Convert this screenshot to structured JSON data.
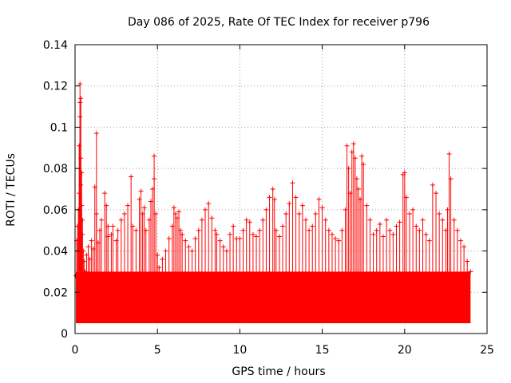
{
  "chart_data": {
    "type": "scatter",
    "title": "Day 086 of 2025, Rate Of TEC Index for receiver p796",
    "xlabel": "GPS time / hours",
    "ylabel": "ROTI / TECUs",
    "xlim": [
      0,
      25
    ],
    "ylim": [
      0,
      0.14
    ],
    "x_ticks": [
      0,
      5,
      10,
      15,
      20,
      25
    ],
    "x_tick_labels": [
      "0",
      "5",
      "10",
      "15",
      "20",
      "25"
    ],
    "y_ticks": [
      0,
      0.02,
      0.04,
      0.06,
      0.08,
      0.1,
      0.12,
      0.14
    ],
    "y_tick_labels": [
      "0",
      "0.02",
      "0.04",
      "0.06",
      "0.08",
      "0.1",
      "0.12",
      "0.14"
    ],
    "grid": true,
    "marker": "+",
    "color": "#ff0000",
    "series": [
      {
        "name": "ROTI",
        "x": [
          0.05,
          0.1,
          0.15,
          0.2,
          0.25,
          0.25,
          0.3,
          0.3,
          0.3,
          0.35,
          0.35,
          0.35,
          0.4,
          0.4,
          0.45,
          0.45,
          0.5,
          0.55,
          0.6,
          0.7,
          0.8,
          0.9,
          1.0,
          1.1,
          1.2,
          1.3,
          1.3,
          1.4,
          1.5,
          1.6,
          1.8,
          1.9,
          2.0,
          2.0,
          2.2,
          2.3,
          2.5,
          2.6,
          2.8,
          3.0,
          3.2,
          3.4,
          3.5,
          3.7,
          3.9,
          4.0,
          4.1,
          4.2,
          4.3,
          4.5,
          4.6,
          4.7,
          4.8,
          4.8,
          4.9,
          5.0,
          5.1,
          5.3,
          5.5,
          5.7,
          5.9,
          6.0,
          6.1,
          6.2,
          6.3,
          6.4,
          6.5,
          6.7,
          6.9,
          7.1,
          7.3,
          7.5,
          7.7,
          7.9,
          8.1,
          8.3,
          8.5,
          8.6,
          8.8,
          9.0,
          9.2,
          9.4,
          9.6,
          9.8,
          10.0,
          10.2,
          10.4,
          10.6,
          10.8,
          11.0,
          11.2,
          11.4,
          11.6,
          11.8,
          12.0,
          12.1,
          12.2,
          12.4,
          12.6,
          12.8,
          13.0,
          13.2,
          13.4,
          13.6,
          13.8,
          14.0,
          14.2,
          14.4,
          14.6,
          14.8,
          15.0,
          15.2,
          15.4,
          15.6,
          15.8,
          16.0,
          16.2,
          16.4,
          16.5,
          16.6,
          16.7,
          16.8,
          16.9,
          17.0,
          17.1,
          17.2,
          17.3,
          17.4,
          17.5,
          17.7,
          17.9,
          18.1,
          18.3,
          18.5,
          18.7,
          18.9,
          19.1,
          19.3,
          19.5,
          19.7,
          19.9,
          20.0,
          20.1,
          20.3,
          20.5,
          20.7,
          20.9,
          21.1,
          21.3,
          21.5,
          21.7,
          21.9,
          22.1,
          22.3,
          22.5,
          22.6,
          22.7,
          22.8,
          23.0,
          23.2,
          23.4,
          23.6,
          23.8,
          24.0
        ],
        "y": [
          0.028,
          0.045,
          0.052,
          0.06,
          0.068,
          0.091,
          0.105,
          0.112,
          0.121,
          0.114,
          0.085,
          0.072,
          0.078,
          0.062,
          0.055,
          0.048,
          0.04,
          0.035,
          0.03,
          0.038,
          0.042,
          0.036,
          0.045,
          0.041,
          0.071,
          0.097,
          0.058,
          0.044,
          0.05,
          0.055,
          0.068,
          0.062,
          0.052,
          0.047,
          0.048,
          0.052,
          0.045,
          0.05,
          0.055,
          0.058,
          0.062,
          0.076,
          0.052,
          0.05,
          0.065,
          0.069,
          0.058,
          0.061,
          0.05,
          0.055,
          0.064,
          0.07,
          0.075,
          0.086,
          0.058,
          0.038,
          0.032,
          0.036,
          0.04,
          0.046,
          0.052,
          0.061,
          0.058,
          0.056,
          0.059,
          0.05,
          0.048,
          0.045,
          0.042,
          0.04,
          0.046,
          0.05,
          0.055,
          0.06,
          0.063,
          0.056,
          0.05,
          0.048,
          0.045,
          0.042,
          0.04,
          0.048,
          0.052,
          0.046,
          0.046,
          0.05,
          0.055,
          0.054,
          0.048,
          0.047,
          0.05,
          0.055,
          0.06,
          0.066,
          0.07,
          0.065,
          0.05,
          0.047,
          0.052,
          0.058,
          0.063,
          0.073,
          0.066,
          0.058,
          0.062,
          0.055,
          0.05,
          0.052,
          0.058,
          0.065,
          0.061,
          0.055,
          0.05,
          0.048,
          0.046,
          0.045,
          0.05,
          0.06,
          0.091,
          0.08,
          0.068,
          0.088,
          0.092,
          0.085,
          0.075,
          0.07,
          0.065,
          0.086,
          0.082,
          0.062,
          0.055,
          0.048,
          0.05,
          0.053,
          0.047,
          0.055,
          0.05,
          0.048,
          0.052,
          0.054,
          0.077,
          0.078,
          0.066,
          0.058,
          0.06,
          0.052,
          0.05,
          0.055,
          0.048,
          0.045,
          0.072,
          0.068,
          0.058,
          0.055,
          0.05,
          0.06,
          0.087,
          0.075,
          0.055,
          0.05,
          0.045,
          0.042,
          0.035,
          0.03
        ],
        "background_band": [
          0.005,
          0.03
        ]
      }
    ]
  }
}
